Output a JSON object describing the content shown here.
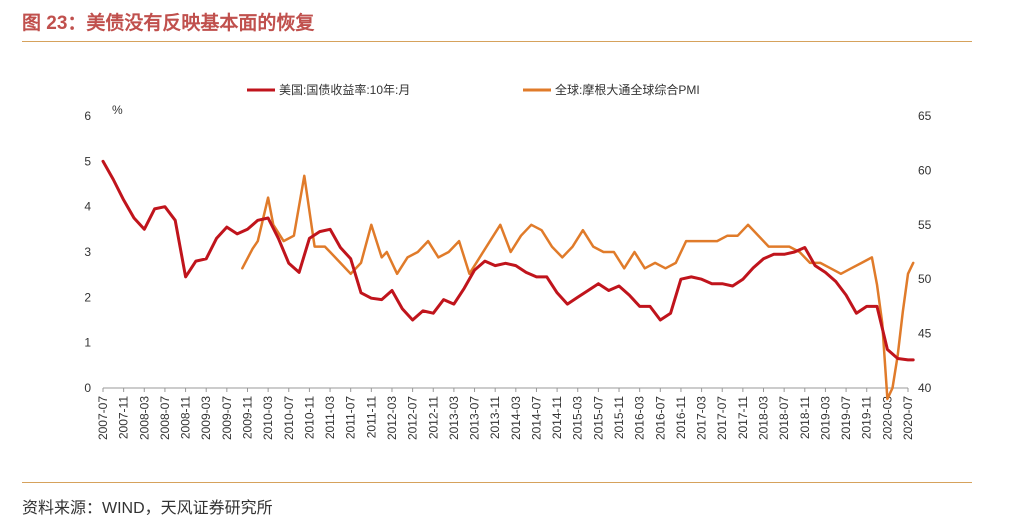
{
  "title": "图 23：美债没有反映基本面的恢复",
  "source": "资料来源：WIND，天风证券研究所",
  "chart_data": {
    "type": "line",
    "y_unit": "%",
    "y_left_lim": [
      0,
      6
    ],
    "y_left_ticks": [
      0,
      1,
      2,
      3,
      4,
      5,
      6
    ],
    "y_right_lim": [
      40,
      65
    ],
    "y_right_ticks": [
      40,
      45,
      50,
      55,
      60,
      65
    ],
    "legend_position": "top",
    "grid": false,
    "x_ticks": [
      "2007-07",
      "2007-11",
      "2008-03",
      "2008-07",
      "2008-11",
      "2009-03",
      "2009-07",
      "2009-11",
      "2010-03",
      "2010-07",
      "2010-11",
      "2011-03",
      "2011-07",
      "2011-11",
      "2012-03",
      "2012-07",
      "2012-11",
      "2013-03",
      "2013-07",
      "2013-11",
      "2014-03",
      "2014-07",
      "2014-11",
      "2015-03",
      "2015-07",
      "2015-11",
      "2016-03",
      "2016-07",
      "2016-11",
      "2017-03",
      "2017-07",
      "2017-11",
      "2018-03",
      "2018-07",
      "2018-11",
      "2019-03",
      "2019-07",
      "2019-11",
      "2020-03",
      "2020-07"
    ],
    "series": [
      {
        "name": "美国:国债收益率:10年:月",
        "axis": "left",
        "color": "#c0141c",
        "x": [
          "2007-07",
          "2007-09",
          "2007-11",
          "2008-01",
          "2008-03",
          "2008-05",
          "2008-07",
          "2008-09",
          "2008-11",
          "2009-01",
          "2009-03",
          "2009-05",
          "2009-07",
          "2009-09",
          "2009-11",
          "2010-01",
          "2010-03",
          "2010-05",
          "2010-07",
          "2010-09",
          "2010-11",
          "2011-01",
          "2011-03",
          "2011-05",
          "2011-07",
          "2011-09",
          "2011-11",
          "2012-01",
          "2012-03",
          "2012-05",
          "2012-07",
          "2012-09",
          "2012-11",
          "2013-01",
          "2013-03",
          "2013-05",
          "2013-07",
          "2013-09",
          "2013-11",
          "2014-01",
          "2014-03",
          "2014-05",
          "2014-07",
          "2014-09",
          "2014-11",
          "2015-01",
          "2015-03",
          "2015-05",
          "2015-07",
          "2015-09",
          "2015-11",
          "2016-01",
          "2016-03",
          "2016-05",
          "2016-07",
          "2016-09",
          "2016-11",
          "2017-01",
          "2017-03",
          "2017-05",
          "2017-07",
          "2017-09",
          "2017-11",
          "2018-01",
          "2018-03",
          "2018-05",
          "2018-07",
          "2018-09",
          "2018-11",
          "2019-01",
          "2019-03",
          "2019-05",
          "2019-07",
          "2019-09",
          "2019-11",
          "2020-01",
          "2020-03",
          "2020-05",
          "2020-07",
          "2020-08"
        ],
        "values": [
          5.0,
          4.6,
          4.15,
          3.75,
          3.5,
          3.95,
          4.0,
          3.7,
          2.45,
          2.8,
          2.85,
          3.3,
          3.55,
          3.4,
          3.5,
          3.7,
          3.75,
          3.3,
          2.75,
          2.55,
          3.3,
          3.45,
          3.5,
          3.1,
          2.85,
          2.1,
          1.98,
          1.95,
          2.15,
          1.75,
          1.5,
          1.7,
          1.65,
          1.95,
          1.85,
          2.2,
          2.6,
          2.8,
          2.7,
          2.75,
          2.7,
          2.55,
          2.45,
          2.45,
          2.1,
          1.85,
          2.0,
          2.15,
          2.3,
          2.15,
          2.25,
          2.05,
          1.8,
          1.8,
          1.5,
          1.65,
          2.4,
          2.45,
          2.4,
          2.3,
          2.3,
          2.25,
          2.4,
          2.65,
          2.85,
          2.95,
          2.95,
          3.0,
          3.1,
          2.7,
          2.55,
          2.35,
          2.05,
          1.65,
          1.8,
          1.8,
          0.85,
          0.65,
          0.62,
          0.62
        ]
      },
      {
        "name": "全球:摩根大通全球综合PMI",
        "axis": "right",
        "color": "#e07b2a",
        "x": [
          "2009-10",
          "2009-12",
          "2010-01",
          "2010-03",
          "2010-04",
          "2010-06",
          "2010-08",
          "2010-10",
          "2010-12",
          "2011-02",
          "2011-03",
          "2011-05",
          "2011-07",
          "2011-09",
          "2011-11",
          "2012-01",
          "2012-02",
          "2012-04",
          "2012-06",
          "2012-08",
          "2012-10",
          "2012-12",
          "2013-02",
          "2013-04",
          "2013-06",
          "2013-08",
          "2013-10",
          "2013-12",
          "2014-02",
          "2014-04",
          "2014-06",
          "2014-08",
          "2014-10",
          "2014-12",
          "2015-02",
          "2015-04",
          "2015-06",
          "2015-08",
          "2015-10",
          "2015-12",
          "2016-02",
          "2016-04",
          "2016-06",
          "2016-08",
          "2016-10",
          "2016-12",
          "2017-02",
          "2017-04",
          "2017-06",
          "2017-08",
          "2017-10",
          "2017-12",
          "2018-02",
          "2018-04",
          "2018-06",
          "2018-08",
          "2018-10",
          "2018-12",
          "2019-02",
          "2019-04",
          "2019-06",
          "2019-08",
          "2019-10",
          "2019-12",
          "2020-01",
          "2020-02",
          "2020-03",
          "2020-04",
          "2020-05",
          "2020-06",
          "2020-07",
          "2020-08"
        ],
        "values": [
          51.0,
          52.8,
          53.5,
          57.5,
          55.0,
          53.5,
          54.0,
          59.5,
          53.0,
          53.0,
          52.5,
          51.5,
          50.5,
          51.5,
          55.0,
          52.0,
          52.5,
          50.5,
          52.0,
          52.5,
          53.5,
          52.0,
          52.5,
          53.5,
          50.5,
          52.0,
          53.5,
          55.0,
          52.5,
          54.0,
          55.0,
          54.5,
          53.0,
          52.0,
          53.0,
          54.5,
          53.0,
          52.5,
          52.5,
          51.0,
          52.5,
          51.0,
          51.5,
          51.0,
          51.5,
          53.5,
          53.5,
          53.5,
          53.5,
          54.0,
          54.0,
          55.0,
          54.0,
          53.0,
          53.0,
          53.0,
          52.5,
          51.5,
          51.5,
          51.0,
          50.5,
          51.0,
          51.5,
          52.0,
          49.5,
          46.0,
          39.0,
          40.0,
          43.0,
          47.0,
          50.5,
          51.5
        ]
      }
    ]
  }
}
